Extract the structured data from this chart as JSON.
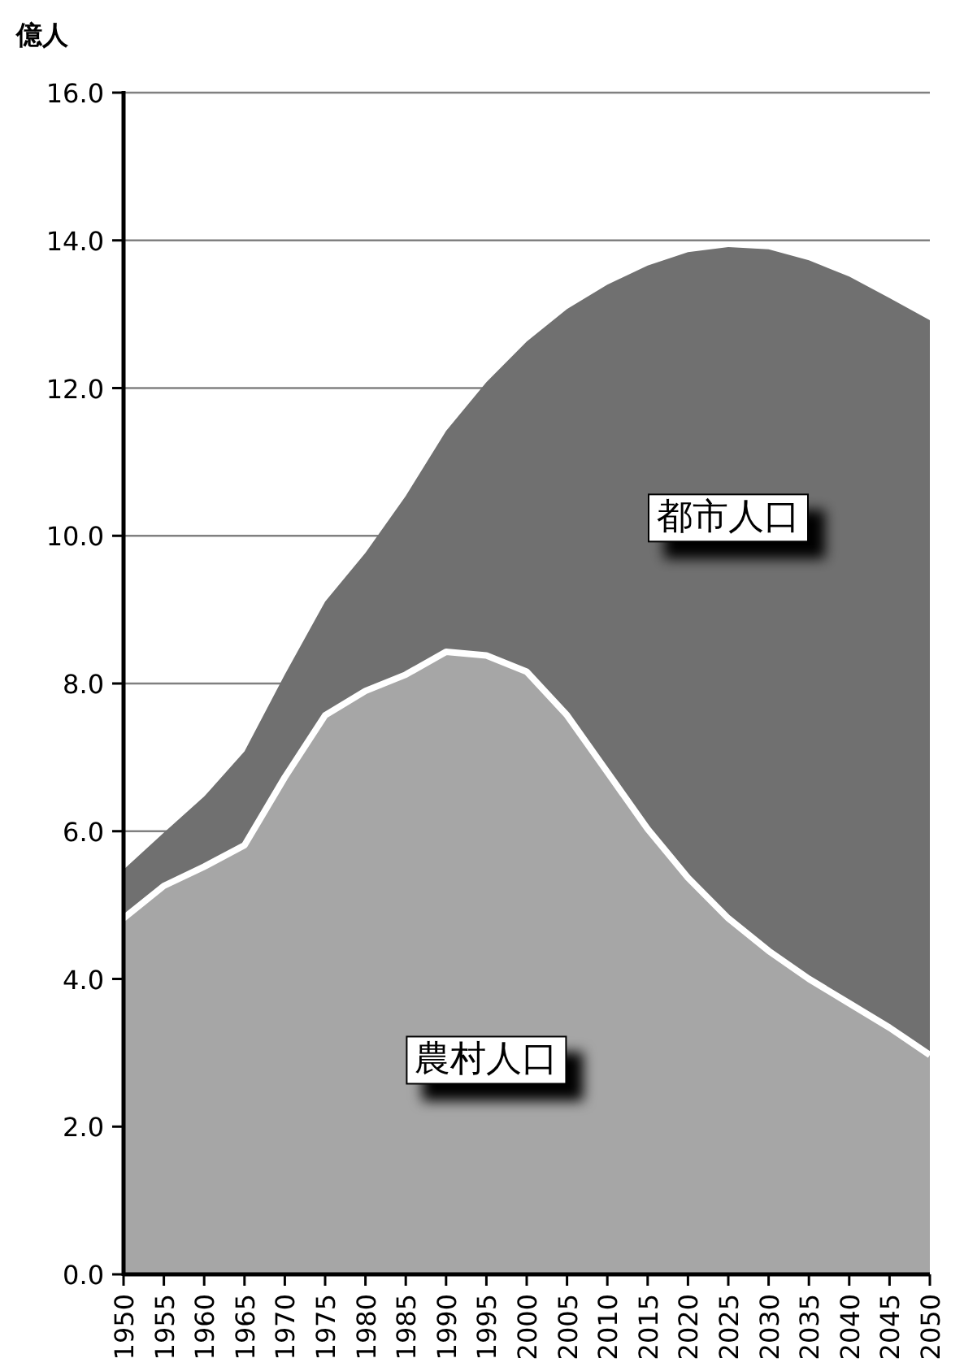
{
  "chart_data": {
    "type": "area",
    "stacked": true,
    "ylabel": "億人",
    "categories": [
      "1950",
      "1955",
      "1960",
      "1965",
      "1970",
      "1975",
      "1980",
      "1985",
      "1990",
      "1995",
      "2000",
      "2005",
      "2010",
      "2015",
      "2020",
      "2025",
      "2030",
      "2035",
      "2040",
      "2045",
      "2050"
    ],
    "series": [
      {
        "name": "農村人口",
        "color": "#a6a6a6",
        "values": [
          4.82,
          5.26,
          5.52,
          5.81,
          6.73,
          7.57,
          7.9,
          8.12,
          8.43,
          8.38,
          8.16,
          7.57,
          6.8,
          6.03,
          5.37,
          4.82,
          4.38,
          4.0,
          3.67,
          3.34,
          2.97
        ]
      },
      {
        "name": "都市人口",
        "color": "#707070",
        "values": [
          0.66,
          0.72,
          0.95,
          1.27,
          1.39,
          1.54,
          1.87,
          2.42,
          2.99,
          3.7,
          4.47,
          5.5,
          6.6,
          7.63,
          8.47,
          9.09,
          9.5,
          9.73,
          9.84,
          9.88,
          9.95
        ]
      }
    ],
    "ylim": [
      0,
      16
    ],
    "yticks": [
      {
        "value": 0,
        "label": "0.0"
      },
      {
        "value": 2,
        "label": "2.0"
      },
      {
        "value": 4,
        "label": "4.0"
      },
      {
        "value": 6,
        "label": "6.0"
      },
      {
        "value": 8,
        "label": "8.0"
      },
      {
        "value": 10,
        "label": "10.0"
      },
      {
        "value": 12,
        "label": "12.0"
      },
      {
        "value": 14,
        "label": "14.0"
      },
      {
        "value": 16,
        "label": "16.0"
      }
    ],
    "grid": "y"
  }
}
